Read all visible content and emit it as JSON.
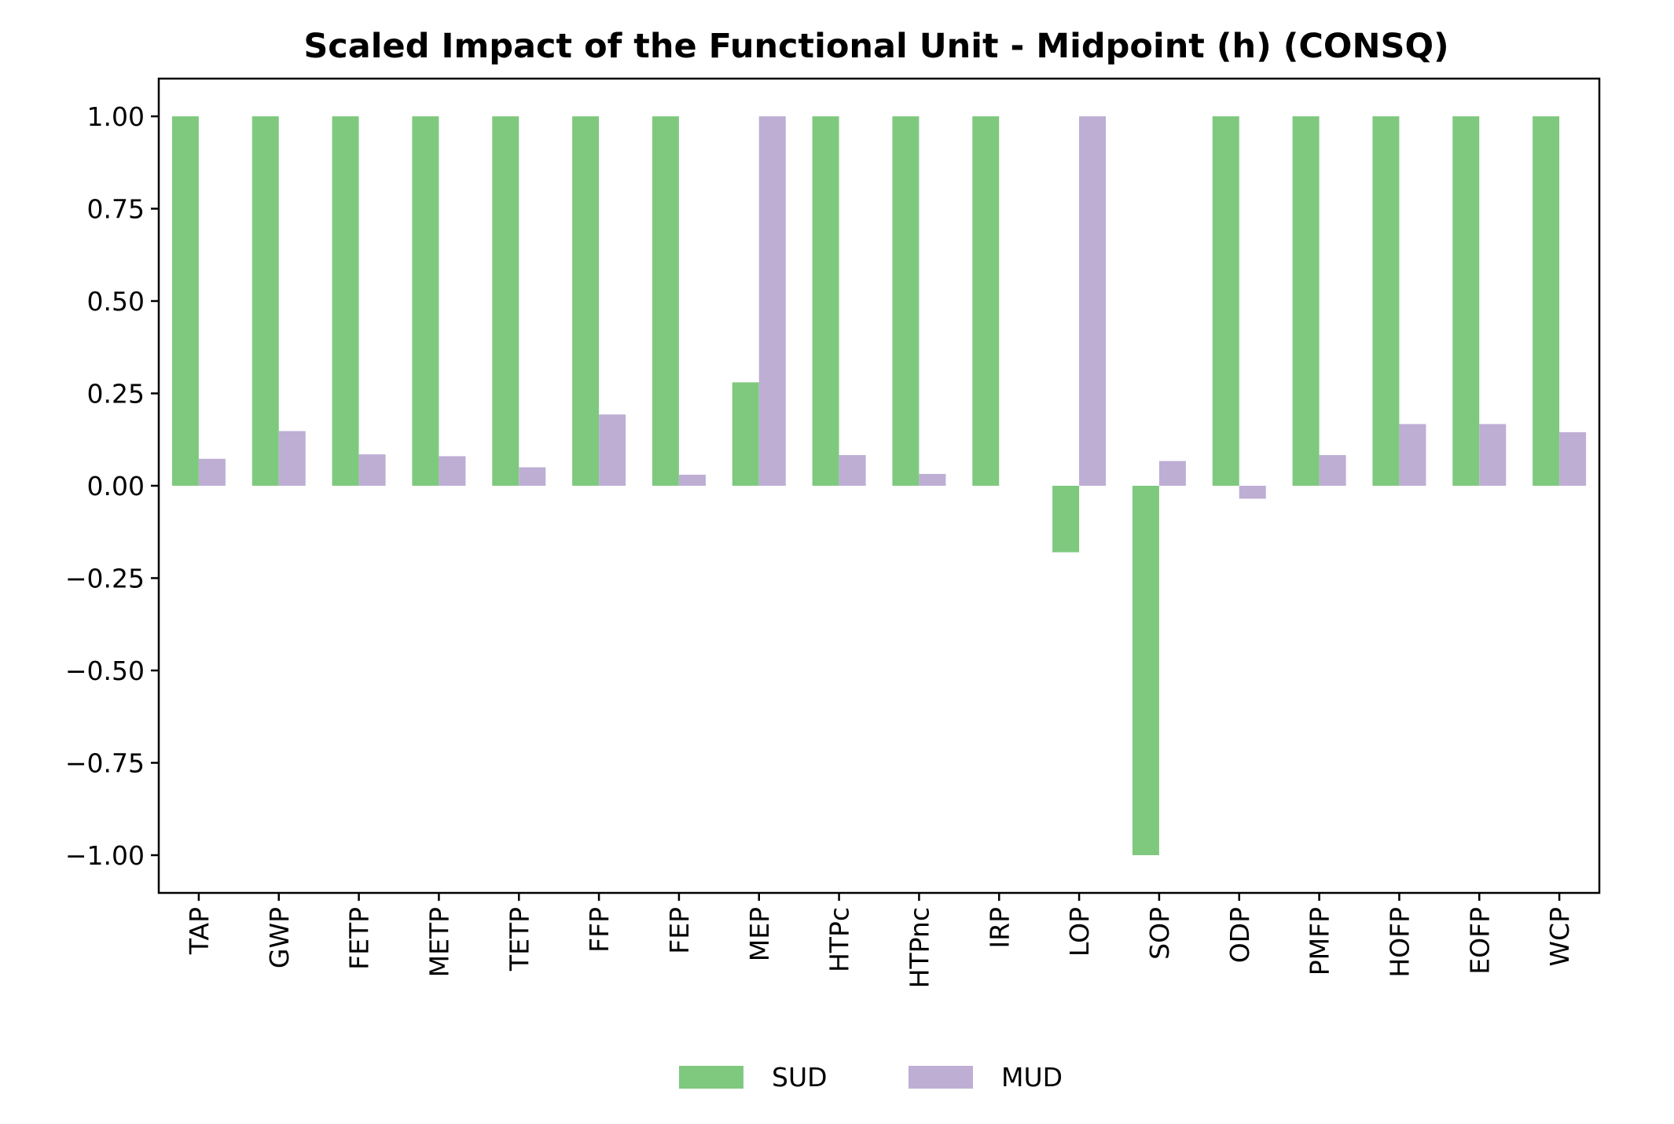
{
  "chart_data": {
    "type": "bar",
    "title": "Scaled Impact of the Functional Unit - Midpoint (h) (CONSQ)",
    "xlabel": "",
    "ylabel": "",
    "categories": [
      "TAP",
      "GWP",
      "FETP",
      "METP",
      "TETP",
      "FFP",
      "FEP",
      "MEP",
      "HTPc",
      "HTPnc",
      "IRP",
      "LOP",
      "SOP",
      "ODP",
      "PMFP",
      "HOFP",
      "EOFP",
      "WCP"
    ],
    "series": [
      {
        "name": "SUD",
        "color": "#7fc97f",
        "values": [
          1.0,
          1.0,
          1.0,
          1.0,
          1.0,
          1.0,
          1.0,
          0.28,
          1.0,
          1.0,
          1.0,
          -0.18,
          -1.0,
          1.0,
          1.0,
          1.0,
          1.0,
          1.0
        ]
      },
      {
        "name": "MUD",
        "color": "#beaed4",
        "values": [
          0.073,
          0.148,
          0.085,
          0.08,
          0.05,
          0.193,
          0.03,
          1.0,
          0.083,
          0.032,
          0.0,
          1.0,
          0.067,
          -0.035,
          0.083,
          0.167,
          0.167,
          0.145
        ]
      }
    ],
    "yticks": [
      "1.00",
      "0.75",
      "0.50",
      "0.25",
      "0.00",
      "−0.25",
      "−0.50",
      "−0.75",
      "−1.00"
    ],
    "ytick_values": [
      1.0,
      0.75,
      0.5,
      0.25,
      0.0,
      -0.25,
      -0.5,
      -0.75,
      -1.0
    ],
    "ylim": [
      -1.1,
      1.1
    ],
    "grid": false,
    "legend_position": "bottom-center"
  }
}
